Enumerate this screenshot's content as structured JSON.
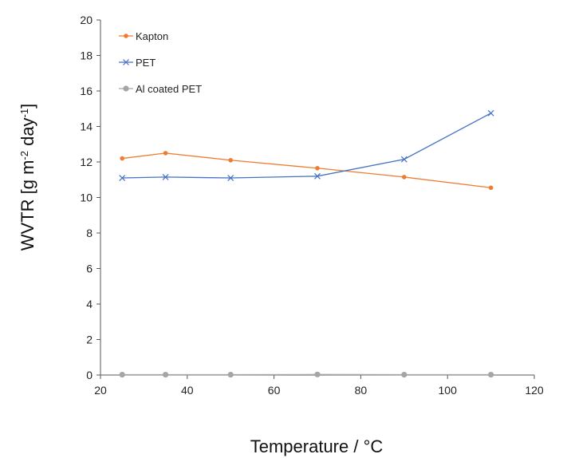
{
  "chart_data": {
    "type": "line",
    "title": "",
    "xlabel": "Temperature / °C",
    "ylabel_parts": [
      "WVTR [g m",
      "-2",
      " day",
      "-1",
      "]"
    ],
    "xlim": [
      20,
      120
    ],
    "ylim": [
      0,
      20
    ],
    "xticks": [
      20,
      40,
      60,
      80,
      100,
      120
    ],
    "yticks": [
      0,
      2,
      4,
      6,
      8,
      10,
      12,
      14,
      16,
      18,
      20
    ],
    "legend_position": "top-left",
    "grid": false,
    "series": [
      {
        "name": "Kapton",
        "color": "#ED7D31",
        "marker": "circle",
        "x": [
          25,
          35,
          50,
          70,
          90,
          110
        ],
        "y": [
          12.2,
          12.5,
          12.1,
          11.65,
          11.15,
          10.55
        ]
      },
      {
        "name": "PET",
        "color": "#4472C4",
        "marker": "x",
        "x": [
          25,
          35,
          50,
          70,
          90,
          110
        ],
        "y": [
          11.1,
          11.15,
          11.1,
          11.2,
          12.15,
          14.75
        ]
      },
      {
        "name": "Al coated PET",
        "color": "#A5A5A5",
        "marker": "bigcircle",
        "x": [
          25,
          35,
          50,
          70,
          90,
          110
        ],
        "y": [
          0.02,
          0.02,
          0.02,
          0.03,
          0.02,
          0.02
        ]
      }
    ]
  }
}
